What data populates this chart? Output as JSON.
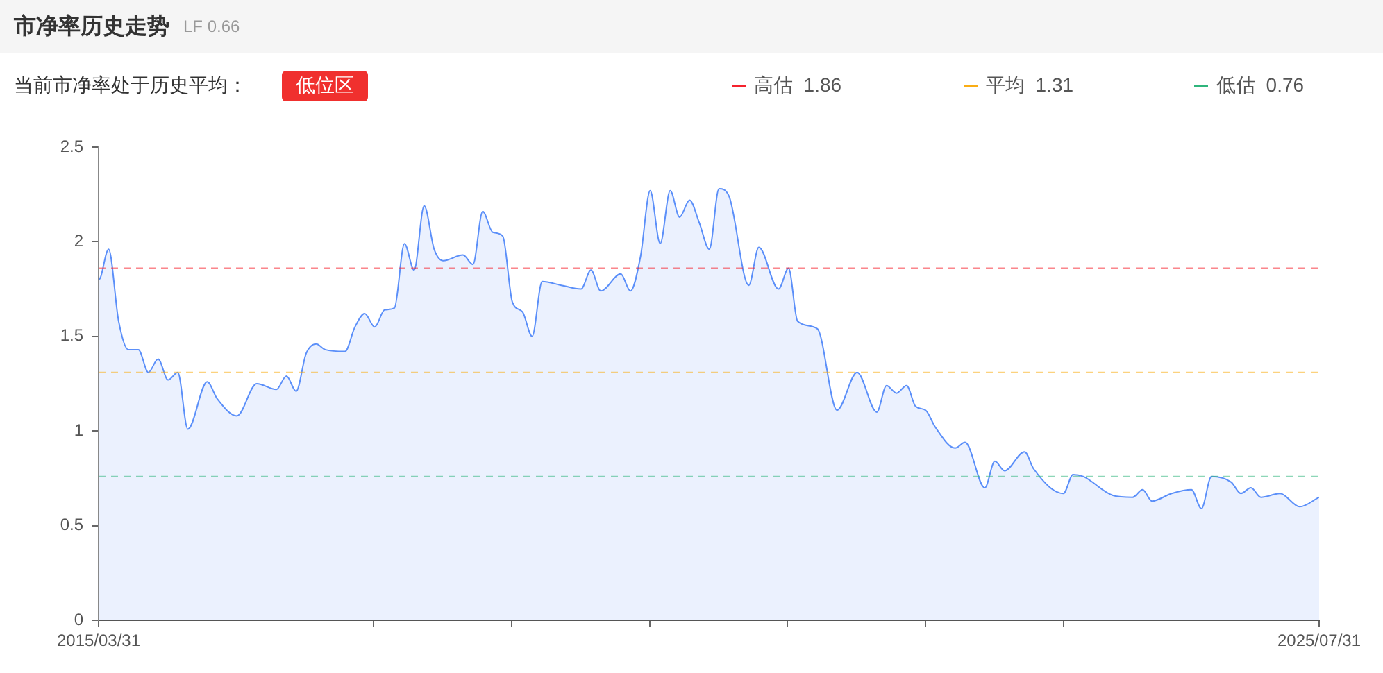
{
  "chart_data": {
    "type": "area",
    "title": "市净率历史走势",
    "subtitle": "LF 0.66",
    "annotations": [
      "当前市净率处于历史平均：",
      "低位区"
    ],
    "x": [
      "2015-03-31",
      "2015-04",
      "2015-05",
      "2015-06",
      "2015-07",
      "2015-08",
      "2015-09",
      "2015-10",
      "2015-11",
      "2015-12",
      "2016-01",
      "2016-03",
      "2016-04",
      "2016-06",
      "2016-08",
      "2016-10",
      "2016-11",
      "2016-12",
      "2017-01",
      "2017-02",
      "2017-03",
      "2017-05",
      "2017-06",
      "2017-07",
      "2017-08",
      "2017-09",
      "2017-10",
      "2017-11",
      "2017-12",
      "2018-01",
      "2018-02",
      "2018-03",
      "2018-05",
      "2018-06",
      "2018-07",
      "2018-08",
      "2018-09",
      "2018-10",
      "2018-11",
      "2018-12",
      "2019-01",
      "2019-03",
      "2019-05",
      "2019-06",
      "2019-07",
      "2019-09",
      "2019-10",
      "2019-11",
      "2019-12",
      "2020-01",
      "2020-02",
      "2020-03",
      "2020-04",
      "2020-05",
      "2020-06",
      "2020-07",
      "2020-08",
      "2020-10",
      "2020-11",
      "2021-01",
      "2021-02",
      "2021-03",
      "2021-05",
      "2021-07",
      "2021-09",
      "2021-11",
      "2021-12",
      "2022-01",
      "2022-02",
      "2022-03",
      "2022-04",
      "2022-05",
      "2022-07",
      "2022-08",
      "2022-10",
      "2022-11",
      "2022-12",
      "2023-02",
      "2023-03",
      "2023-06",
      "2023-07",
      "2023-08",
      "2023-11",
      "2024-01",
      "2024-02",
      "2024-03",
      "2024-05",
      "2024-07",
      "2024-08",
      "2024-09",
      "2024-11",
      "2024-12",
      "2025-01",
      "2025-02",
      "2025-04",
      "2025-06",
      "2025-07-31"
    ],
    "series": [
      {
        "color": "#5b8ff9",
        "values": [
          1.82,
          1.8,
          1.96,
          1.58,
          1.43,
          1.43,
          1.31,
          1.38,
          1.27,
          1.31,
          1.01,
          1.26,
          1.17,
          1.08,
          1.25,
          1.22,
          1.29,
          1.21,
          1.41,
          1.46,
          1.43,
          1.42,
          1.55,
          1.62,
          1.55,
          1.64,
          1.65,
          1.99,
          1.85,
          2.19,
          1.96,
          1.9,
          1.93,
          1.88,
          2.16,
          2.05,
          2.03,
          1.68,
          1.63,
          1.5,
          1.79,
          1.77,
          1.75,
          1.85,
          1.74,
          1.83,
          1.74,
          1.92,
          2.27,
          1.99,
          2.27,
          2.13,
          2.22,
          2.1,
          1.96,
          2.28,
          2.24,
          1.77,
          1.97,
          1.75,
          1.86,
          1.58,
          1.54,
          1.11,
          1.31,
          1.1,
          1.24,
          1.2,
          1.24,
          1.13,
          1.11,
          1.02,
          0.91,
          0.94,
          0.7,
          0.84,
          0.79,
          0.89,
          0.8,
          0.67,
          0.77,
          0.76,
          0.66,
          0.65,
          0.69,
          0.63,
          0.67,
          0.69,
          0.59,
          0.76,
          0.73,
          0.67,
          0.7,
          0.65,
          0.67,
          0.6,
          0.65
        ]
      }
    ],
    "xlim": [
      "2015-03-31",
      "2025-07-31"
    ],
    "xticks": [
      {
        "value": "2015-03-31",
        "label": "2015/03/31"
      },
      {
        "value": "2017-07-28",
        "label": null
      },
      {
        "value": "2018-09-28",
        "label": null
      },
      {
        "value": "2019-11-29",
        "label": null
      },
      {
        "value": "2021-01-29",
        "label": null
      },
      {
        "value": "2022-04-01",
        "label": null
      },
      {
        "value": "2023-06-02",
        "label": null
      },
      {
        "value": "2025-07-31",
        "label": "2025/07/31"
      }
    ],
    "ylim": [
      0,
      2.5
    ],
    "yticks": [
      0,
      0.5,
      1,
      1.5,
      2,
      2.5
    ],
    "grid": false,
    "legend": "top right",
    "marker": "none",
    "ref_lines": [
      {
        "axis": "y",
        "value": 1.86,
        "label": "高估  1.86",
        "color": "#f5222d",
        "line_style": "dashed"
      },
      {
        "axis": "y",
        "value": 1.31,
        "label": "平均  1.31",
        "color": "#faad14",
        "line_style": "dashed"
      },
      {
        "axis": "y",
        "value": 0.76,
        "label": "低估  0.76",
        "color": "#2fb57c",
        "line_style": "dashed"
      }
    ]
  }
}
